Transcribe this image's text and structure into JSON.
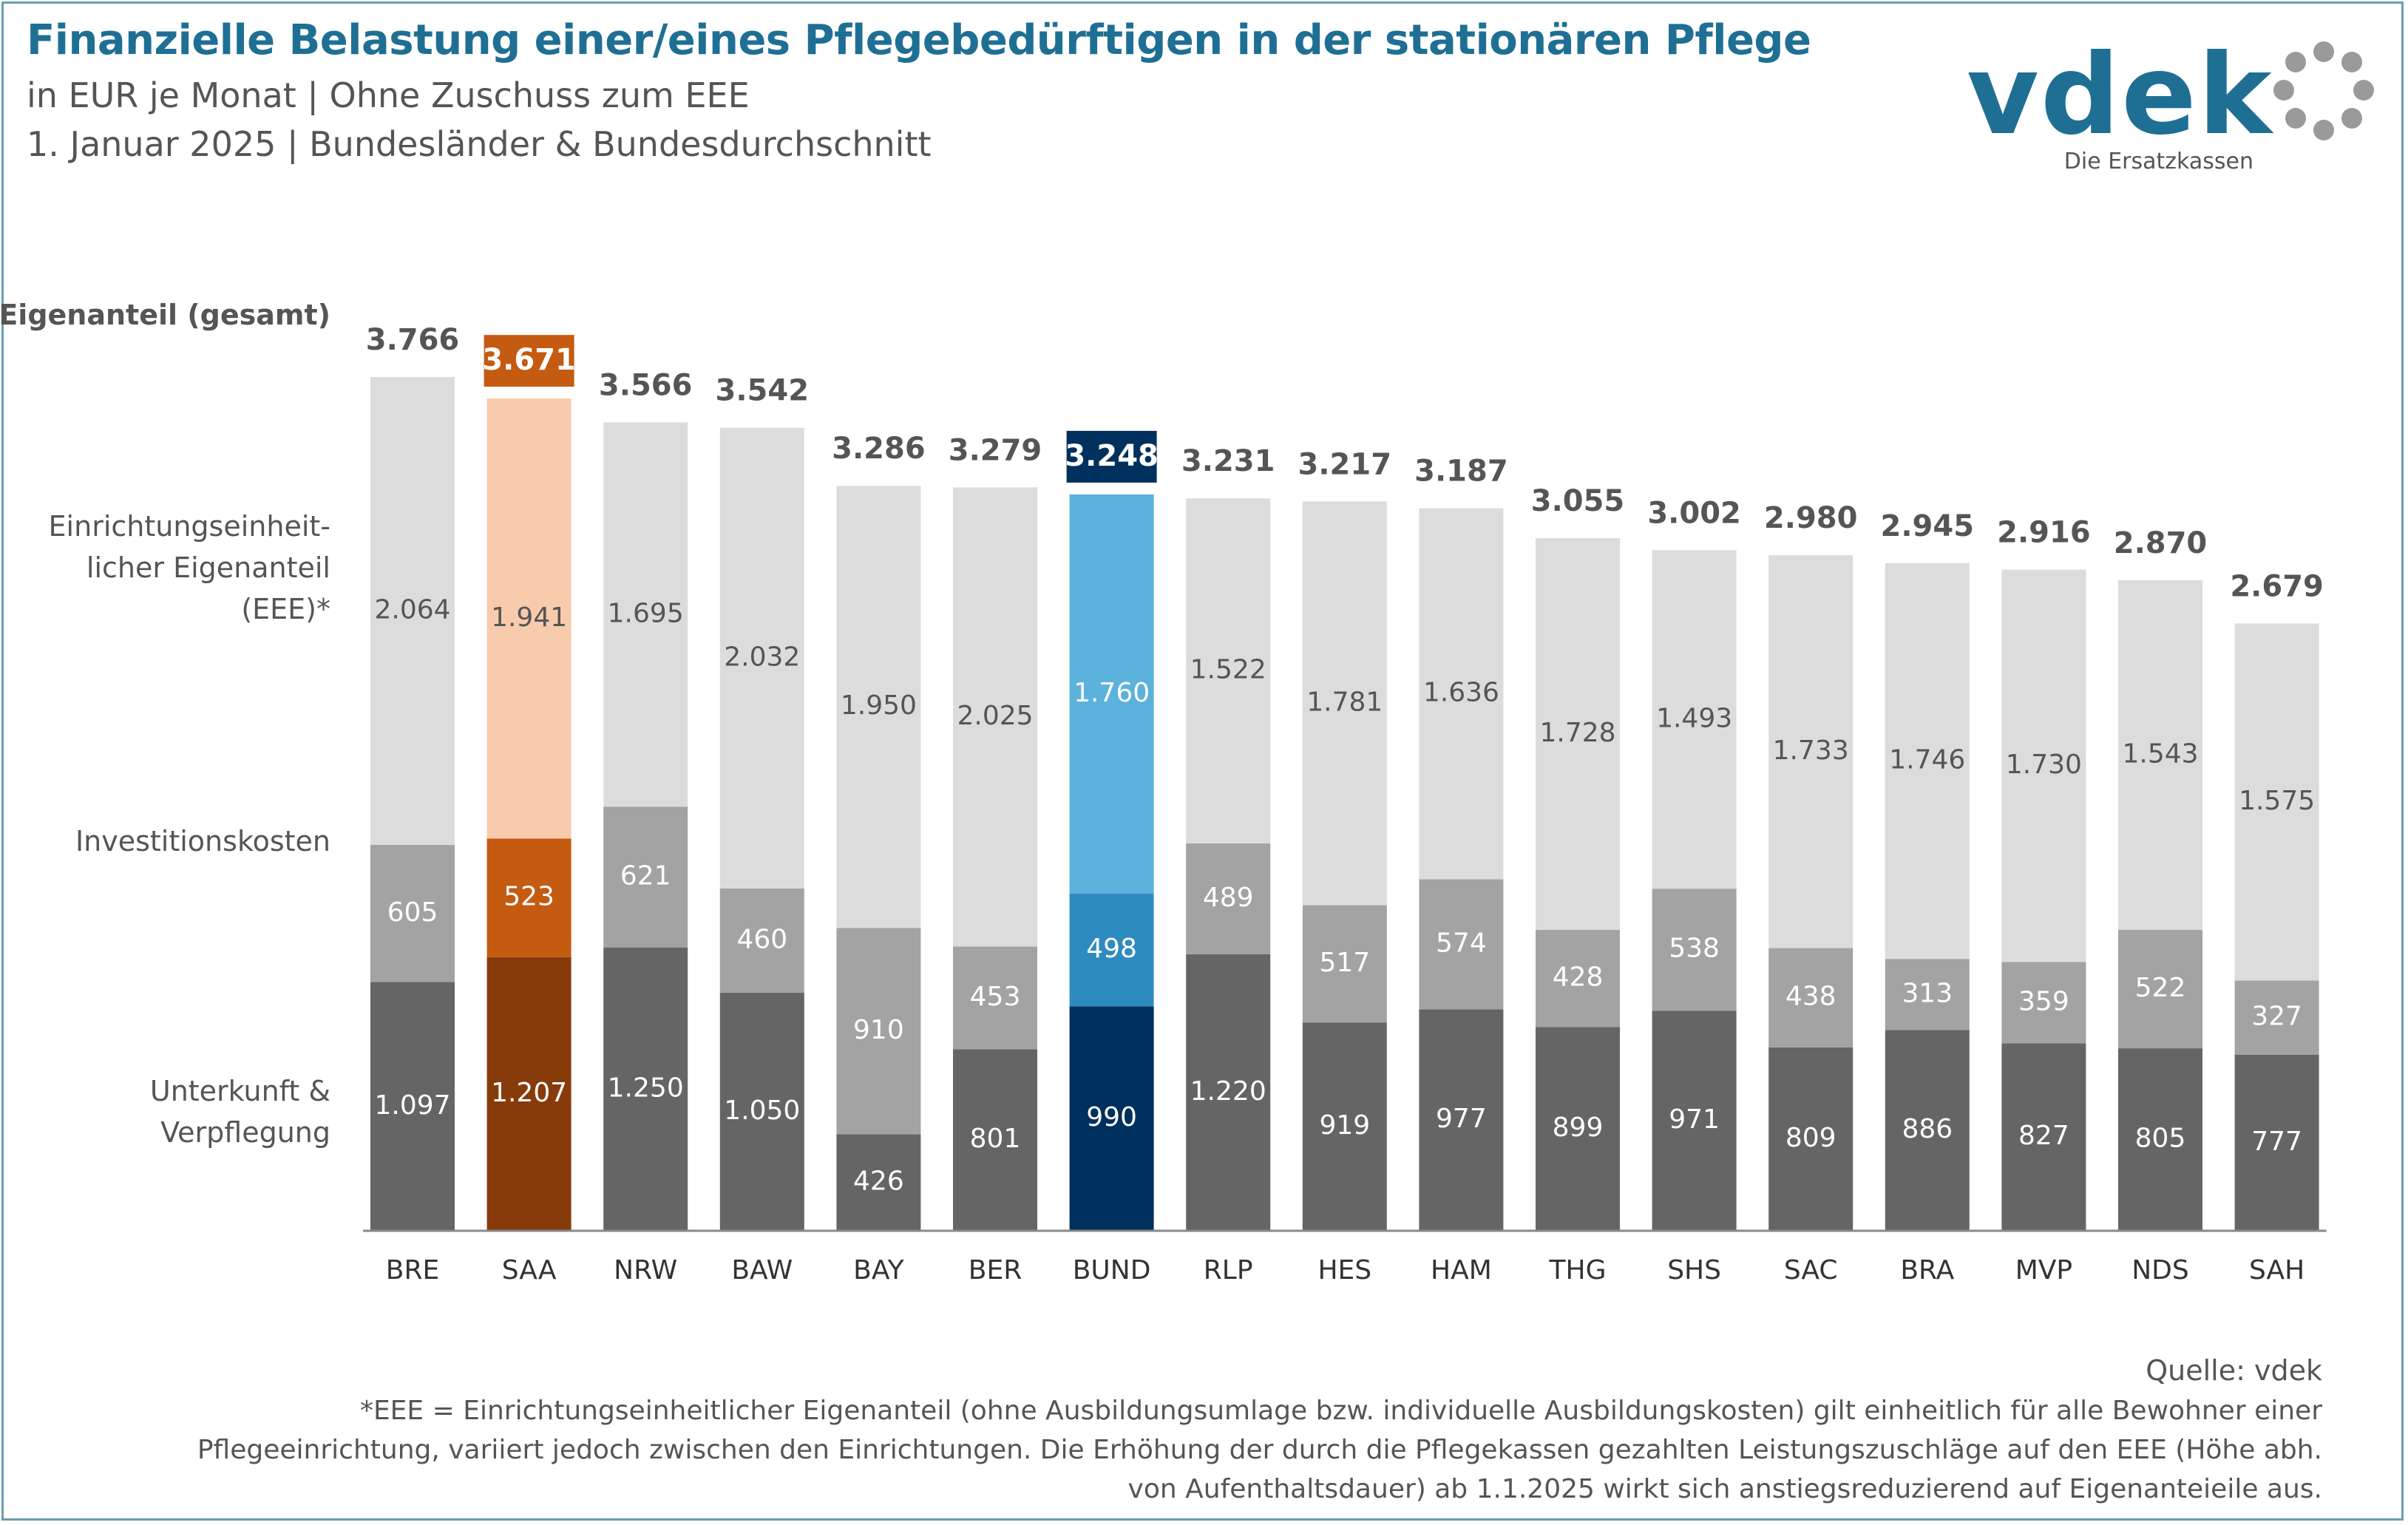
{
  "header": {
    "title": "Finanzielle Belastung einer/eines Pflegebedürftigen in der stationären Pflege",
    "subtitle1": "in EUR je Monat | Ohne Zuschuss zum EEE",
    "subtitle2": "1. Januar 2025 | Bundesländer & Bundesdurchschnitt"
  },
  "logo": {
    "text": "vdek",
    "tagline": "Die Ersatzkassen",
    "color": "#1f6f94",
    "dots_color": "#9a9a9a"
  },
  "legend_labels": {
    "total": "Eigenanteil (gesamt)",
    "eee_line1": "Einrichtungseinheit-",
    "eee_line2": "licher Eigenanteil",
    "eee_line3": "(EEE)*",
    "invest": "Investitionskosten",
    "uv_line1": "Unterkunft &",
    "uv_line2": "Verpflegung"
  },
  "chart_data": {
    "type": "bar",
    "stacked": true,
    "categories": [
      "BRE",
      "SAA",
      "NRW",
      "BAW",
      "BAY",
      "BER",
      "BUND",
      "RLP",
      "HES",
      "HAM",
      "THG",
      "SHS",
      "SAC",
      "BRA",
      "MVP",
      "NDS",
      "SAH"
    ],
    "series": [
      {
        "name": "Unterkunft & Verpflegung",
        "values": [
          1097,
          1207,
          1250,
          1050,
          426,
          801,
          990,
          1220,
          919,
          977,
          899,
          971,
          809,
          886,
          827,
          805,
          777
        ]
      },
      {
        "name": "Investitionskosten",
        "values": [
          605,
          523,
          621,
          460,
          910,
          453,
          498,
          489,
          517,
          574,
          428,
          538,
          438,
          313,
          359,
          522,
          327
        ]
      },
      {
        "name": "Einrichtungseinheitlicher Eigenanteil (EEE)*",
        "values": [
          2064,
          1941,
          1695,
          2032,
          1950,
          2025,
          1760,
          1522,
          1781,
          1636,
          1728,
          1493,
          1733,
          1746,
          1730,
          1543,
          1575
        ]
      }
    ],
    "totals": [
      3766,
      3671,
      3566,
      3542,
      3286,
      3279,
      3248,
      3231,
      3217,
      3187,
      3055,
      3002,
      2980,
      2945,
      2916,
      2870,
      2679
    ],
    "value_labels": {
      "uv": [
        "1.097",
        "1.207",
        "1.250",
        "1.050",
        "426",
        "801",
        "990",
        "1.220",
        "919",
        "977",
        "899",
        "971",
        "809",
        "886",
        "827",
        "805",
        "777"
      ],
      "inv": [
        "605",
        "523",
        "621",
        "460",
        "910",
        "453",
        "498",
        "489",
        "517",
        "574",
        "428",
        "538",
        "438",
        "313",
        "359",
        "522",
        "327"
      ],
      "eee": [
        "2.064",
        "1.941",
        "1.695",
        "2.032",
        "1.950",
        "2.025",
        "1.760",
        "1.522",
        "1.781",
        "1.636",
        "1.728",
        "1.493",
        "1.733",
        "1.746",
        "1.730",
        "1.543",
        "1.575"
      ],
      "total": [
        "3.766",
        "3.671",
        "3.566",
        "3.542",
        "3.286",
        "3.279",
        "3.248",
        "3.231",
        "3.217",
        "3.187",
        "3.055",
        "3.002",
        "2.980",
        "2.945",
        "2.916",
        "2.870",
        "2.679"
      ]
    },
    "highlight": {
      "SAA": "orange",
      "BUND": "blue"
    },
    "colors": {
      "default": {
        "uv": "#656565",
        "inv": "#a3a3a3",
        "eee": "#dcdcdc"
      },
      "orange": {
        "uv": "#873b0b",
        "inv": "#c55a11",
        "eee": "#f8cbad"
      },
      "blue": {
        "uv": "#00305d",
        "inv": "#2e8bc0",
        "eee": "#5ab2dd"
      },
      "total_box_orange": "#c55a11",
      "total_box_blue": "#00305d",
      "text_dark": "#555555"
    },
    "ylim": [
      0,
      3766
    ],
    "grid": false
  },
  "footer": {
    "source": "Quelle: vdek",
    "footnote_line1": "*EEE = Einrichtungseinheitlicher Eigenanteil (ohne Ausbildungsumlage bzw. individuelle Ausbildungskosten) gilt einheitlich für alle Bewohner einer",
    "footnote_line2": "Pflegeeinrichtung, variiert jedoch zwischen den Einrichtungen. Die Erhöhung der durch die Pflegekassen gezahlten Leistungszuschläge auf den EEE (Höhe abh.",
    "footnote_line3": "von Aufenthaltsdauer) ab 1.1.2025 wirkt sich anstiegsreduzierend auf Eigenanteieile aus."
  }
}
